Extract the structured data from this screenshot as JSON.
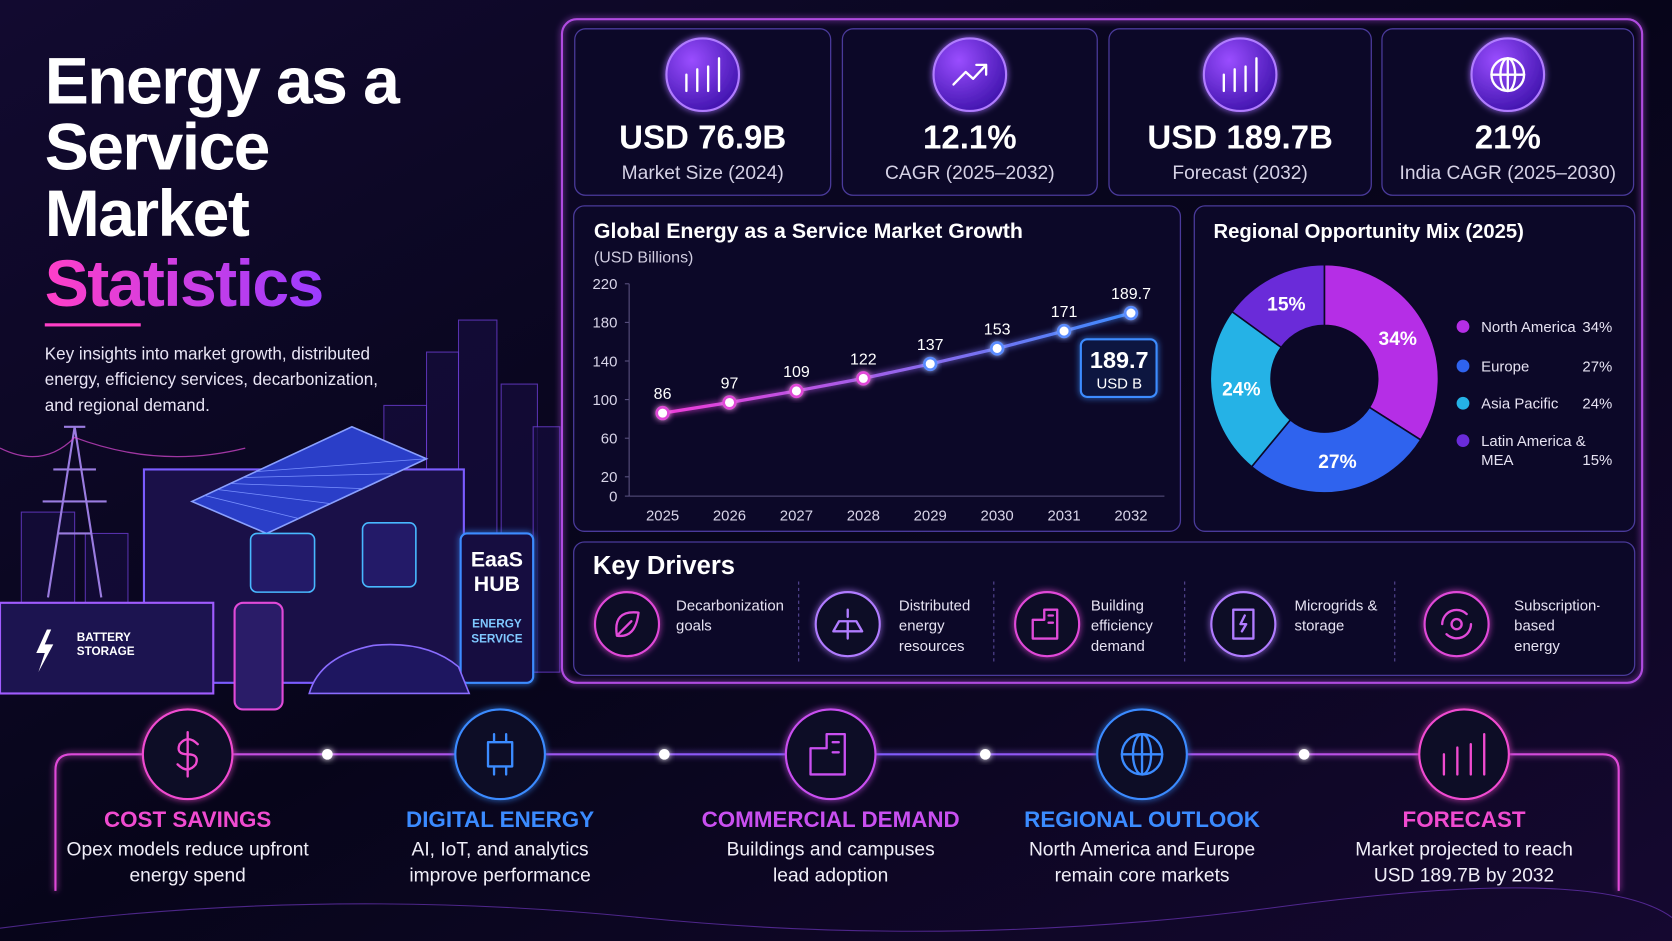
{
  "header": {
    "title_lines": [
      "Energy as a",
      "Service",
      "Market"
    ],
    "title_highlight": "Statistics",
    "description": "Key insights into market growth, distributed energy, efficiency services, decarbonization, and regional demand."
  },
  "illustration": {
    "battery_label": "BATTERY STORAGE",
    "hub_label": "EaaS HUB",
    "hub_sublabel": "ENERGY SERVICE"
  },
  "stats": [
    {
      "value": "USD 76.9B",
      "label": "Market Size (2024)"
    },
    {
      "value": "12.1%",
      "label": "CAGR (2025–2032)"
    },
    {
      "value": "USD 189.7B",
      "label": "Forecast (2032)"
    },
    {
      "value": "21%",
      "label": "India CAGR (2025–2030)"
    }
  ],
  "chart_data": [
    {
      "type": "line",
      "title": "Global Energy as a Service Market Growth",
      "subtitle": "(USD Billions)",
      "categories": [
        "2025",
        "2026",
        "2027",
        "2028",
        "2029",
        "2030",
        "2031",
        "2032"
      ],
      "values": [
        86,
        97,
        109,
        122,
        137,
        153,
        171,
        189.7
      ],
      "ylim": [
        0,
        220
      ],
      "yticks": [
        0,
        20,
        60,
        100,
        140,
        180,
        220
      ],
      "color": "#d63cf0",
      "callout": {
        "value": "189.7",
        "unit": "USD B"
      }
    },
    {
      "type": "donut",
      "title": "Regional Opportunity Mix (2025)",
      "categories": [
        "North America",
        "Europe",
        "Asia Pacific",
        "Latin America & MEA"
      ],
      "values": [
        34,
        27,
        24,
        15
      ],
      "value_labels": [
        "34%",
        "27%",
        "24%",
        "15%"
      ],
      "colors": [
        "#b52ee6",
        "#2f63ee",
        "#25b2e6",
        "#6a2bd9"
      ]
    }
  ],
  "key_drivers": {
    "title": "Key Drivers",
    "items": [
      "Decarbonization goals",
      "Distributed energy resources",
      "Building efficiency demand",
      "Microgrids & storage",
      "Subscription-based energy"
    ]
  },
  "highlights": [
    {
      "title": "COST SAVINGS",
      "text": "Opex models reduce upfront energy spend"
    },
    {
      "title": "DIGITAL ENERGY",
      "text": "AI, IoT, and analytics improve performance"
    },
    {
      "title": "COMMERCIAL DEMAND",
      "text": "Buildings and campuses lead adoption"
    },
    {
      "title": "REGIONAL OUTLOOK",
      "text": "North America and Europe remain core markets"
    },
    {
      "title": "FORECAST",
      "text": "Market projected to reach USD 189.7B by 2032"
    }
  ]
}
